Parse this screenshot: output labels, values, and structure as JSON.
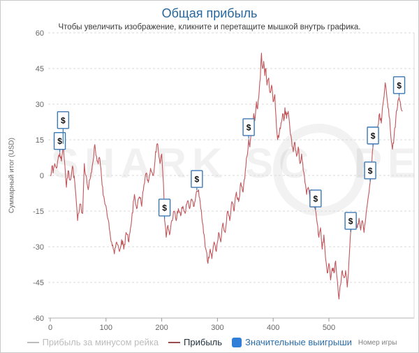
{
  "chart_data": {
    "type": "line",
    "title": "Общая прибыль",
    "subtitle": "Чтобы увеличить изображение, кликните и перетащите мышкой внутрь графика.",
    "xlabel": "Номер игры",
    "ylabel": "Суммарный итог (USD)",
    "ylim": [
      -60,
      60
    ],
    "yticks": [
      60,
      45,
      30,
      15,
      0,
      -15,
      -30,
      -45,
      -60
    ],
    "xticks": [
      0,
      100,
      200,
      300,
      400,
      500
    ],
    "x_axis_max": 650,
    "grid": "horizontal-dashed",
    "legend_position": "bottom",
    "jitter": 1.7,
    "series": [
      {
        "name": "Прибыль за минусом рейка",
        "color": "#c3c3c3",
        "visible": false,
        "keypoints": []
      },
      {
        "name": "Прибыль",
        "color": "#c0565b",
        "visible": true,
        "keypoints": [
          [
            0,
            0
          ],
          [
            3,
            4
          ],
          [
            5,
            1
          ],
          [
            8,
            5
          ],
          [
            11,
            3
          ],
          [
            14,
            7
          ],
          [
            17,
            9.5
          ],
          [
            20,
            6
          ],
          [
            23,
            13
          ],
          [
            26,
            5
          ],
          [
            29,
            -5
          ],
          [
            32,
            2
          ],
          [
            36,
            -2
          ],
          [
            40,
            4
          ],
          [
            44,
            -3
          ],
          [
            47,
            -12
          ],
          [
            49,
            -19
          ],
          [
            52,
            -15
          ],
          [
            54,
            -12
          ],
          [
            58,
            -16
          ],
          [
            61,
            5
          ],
          [
            64,
            0
          ],
          [
            68,
            -6
          ],
          [
            72,
            -1
          ],
          [
            76,
            5
          ],
          [
            80,
            13
          ],
          [
            84,
            6
          ],
          [
            89,
            7
          ],
          [
            93,
            -4
          ],
          [
            98,
            -12
          ],
          [
            103,
            -18
          ],
          [
            108,
            -26
          ],
          [
            115,
            -33
          ],
          [
            119,
            -28
          ],
          [
            124,
            -32
          ],
          [
            128,
            -27
          ],
          [
            132,
            -31
          ],
          [
            136,
            -24
          ],
          [
            141,
            -28
          ],
          [
            145,
            -21
          ],
          [
            151,
            -8
          ],
          [
            155,
            -14
          ],
          [
            160,
            -9
          ],
          [
            164,
            -13
          ],
          [
            168,
            -4
          ],
          [
            172,
            1
          ],
          [
            176,
            -3
          ],
          [
            180,
            3
          ],
          [
            185,
            0
          ],
          [
            189,
            10
          ],
          [
            193,
            13
          ],
          [
            197,
            5
          ],
          [
            200,
            9
          ],
          [
            203,
            -3
          ],
          [
            205,
            -18.5
          ],
          [
            208,
            -26
          ],
          [
            211,
            -21
          ],
          [
            214,
            -25
          ],
          [
            218,
            -19
          ],
          [
            222,
            -15
          ],
          [
            226,
            -19
          ],
          [
            230,
            -14
          ],
          [
            234,
            -17
          ],
          [
            238,
            -13
          ],
          [
            242,
            -16
          ],
          [
            246,
            -11
          ],
          [
            250,
            -14
          ],
          [
            254,
            -10
          ],
          [
            258,
            -13
          ],
          [
            263,
            -6.5
          ],
          [
            266,
            -6
          ],
          [
            270,
            -14
          ],
          [
            274,
            -21
          ],
          [
            278,
            -30
          ],
          [
            283,
            -37
          ],
          [
            287,
            -31
          ],
          [
            290,
            -35
          ],
          [
            294,
            -28
          ],
          [
            298,
            -32
          ],
          [
            302,
            -24
          ],
          [
            306,
            -28
          ],
          [
            310,
            -20
          ],
          [
            314,
            -24
          ],
          [
            318,
            -15
          ],
          [
            322,
            -19
          ],
          [
            326,
            -11
          ],
          [
            330,
            -15
          ],
          [
            334,
            -7
          ],
          [
            338,
            -11
          ],
          [
            342,
            -3
          ],
          [
            346,
            -7
          ],
          [
            350,
            2
          ],
          [
            353,
            8
          ],
          [
            356,
            15.3
          ],
          [
            358,
            12
          ],
          [
            362,
            20
          ],
          [
            365,
            26
          ],
          [
            367,
            23
          ],
          [
            370,
            31
          ],
          [
            372,
            28
          ],
          [
            375,
            36
          ],
          [
            377,
            41
          ],
          [
            379,
            51.5
          ],
          [
            381,
            45
          ],
          [
            383,
            48
          ],
          [
            385,
            42
          ],
          [
            387,
            45
          ],
          [
            389,
            38
          ],
          [
            392,
            41
          ],
          [
            394,
            35
          ],
          [
            397,
            38
          ],
          [
            400,
            31
          ],
          [
            403,
            34
          ],
          [
            406,
            20
          ],
          [
            408,
            15
          ],
          [
            411,
            18
          ],
          [
            414,
            22
          ],
          [
            417,
            26
          ],
          [
            419,
            23
          ],
          [
            421,
            28.5
          ],
          [
            424,
            24
          ],
          [
            427,
            27
          ],
          [
            430,
            20
          ],
          [
            433,
            15
          ],
          [
            436,
            10
          ],
          [
            439,
            14
          ],
          [
            442,
            8
          ],
          [
            445,
            12
          ],
          [
            448,
            5
          ],
          [
            451,
            9
          ],
          [
            454,
            2
          ],
          [
            457,
            -3
          ],
          [
            460,
            -8
          ],
          [
            463,
            -5
          ],
          [
            466,
            -10
          ],
          [
            469,
            -6
          ],
          [
            472,
            -12
          ],
          [
            476,
            -14.7
          ],
          [
            479,
            -20
          ],
          [
            482,
            -26
          ],
          [
            485,
            -22
          ],
          [
            488,
            -31
          ],
          [
            491,
            -25
          ],
          [
            494,
            -35
          ],
          [
            497,
            -41
          ],
          [
            500,
            -37
          ],
          [
            503,
            -44
          ],
          [
            506,
            -39
          ],
          [
            509,
            -41
          ],
          [
            512,
            -36
          ],
          [
            515,
            -44
          ],
          [
            518,
            -52
          ],
          [
            521,
            -46
          ],
          [
            524,
            -40
          ],
          [
            527,
            -43
          ],
          [
            530,
            -40
          ],
          [
            533,
            -47
          ],
          [
            536,
            -36
          ],
          [
            539,
            -24.1
          ],
          [
            542,
            -18
          ],
          [
            545,
            -21
          ],
          [
            548,
            -17
          ],
          [
            551,
            -22
          ],
          [
            554,
            -18
          ],
          [
            557,
            -23
          ],
          [
            560,
            -19
          ],
          [
            563,
            -24
          ],
          [
            566,
            -18
          ],
          [
            569,
            -12
          ],
          [
            572,
            -7
          ],
          [
            574,
            -2.9
          ],
          [
            577,
            5
          ],
          [
            579,
            11.8
          ],
          [
            582,
            17
          ],
          [
            585,
            14
          ],
          [
            588,
            21
          ],
          [
            591,
            26
          ],
          [
            594,
            22
          ],
          [
            597,
            30
          ],
          [
            601,
            39
          ],
          [
            604,
            33
          ],
          [
            607,
            28
          ],
          [
            610,
            20
          ],
          [
            614,
            11
          ],
          [
            617,
            17
          ],
          [
            620,
            24
          ],
          [
            623,
            29
          ],
          [
            626,
            33
          ],
          [
            629,
            29
          ],
          [
            632,
            27
          ]
        ]
      }
    ],
    "significant_wins": {
      "name": "Значительные выигрыши",
      "color": "#2f7ed8",
      "symbol": "$",
      "points": [
        {
          "game": 17,
          "value": 9.5
        },
        {
          "game": 23,
          "value": 13,
          "lift": 18
        },
        {
          "game": 205,
          "value": -18.5
        },
        {
          "game": 263,
          "value": -6.5
        },
        {
          "game": 356,
          "value": 15.3
        },
        {
          "game": 476,
          "value": -14.7
        },
        {
          "game": 539,
          "value": -24.1
        },
        {
          "game": 574,
          "value": -2.9
        },
        {
          "game": 579,
          "value": 11.8
        },
        {
          "game": 626,
          "value": 33
        }
      ]
    }
  },
  "ui": {
    "watermark": {
      "part1": "SHARK SC",
      "part2": "PE"
    },
    "legend": {
      "items": [
        {
          "label": "Прибыль за минусом рейка",
          "type": "line",
          "disabled": true
        },
        {
          "label": "Прибыль",
          "type": "line",
          "disabled": false
        },
        {
          "label": "Значительные выигрыши",
          "type": "square",
          "disabled": false
        }
      ]
    },
    "colors": {
      "title": "#26679e",
      "subtitle": "#3a3a3a",
      "axis_label": "#666666",
      "grid": "#d9d9d9",
      "axis_line": "#b3b3b3",
      "tick": "#999999",
      "line": "#c0565b",
      "marker_border": "#3a78b5",
      "marker_fill": "#ffffff",
      "marker_glyph": "#111111",
      "legend_disabled": "#bcbcbc",
      "legend_profit_swatch": "#9e4a4e",
      "legend_text_dark": "#22303d",
      "legend_blue": "#2b6da8",
      "square_swatch": "#2f7ed8"
    }
  }
}
